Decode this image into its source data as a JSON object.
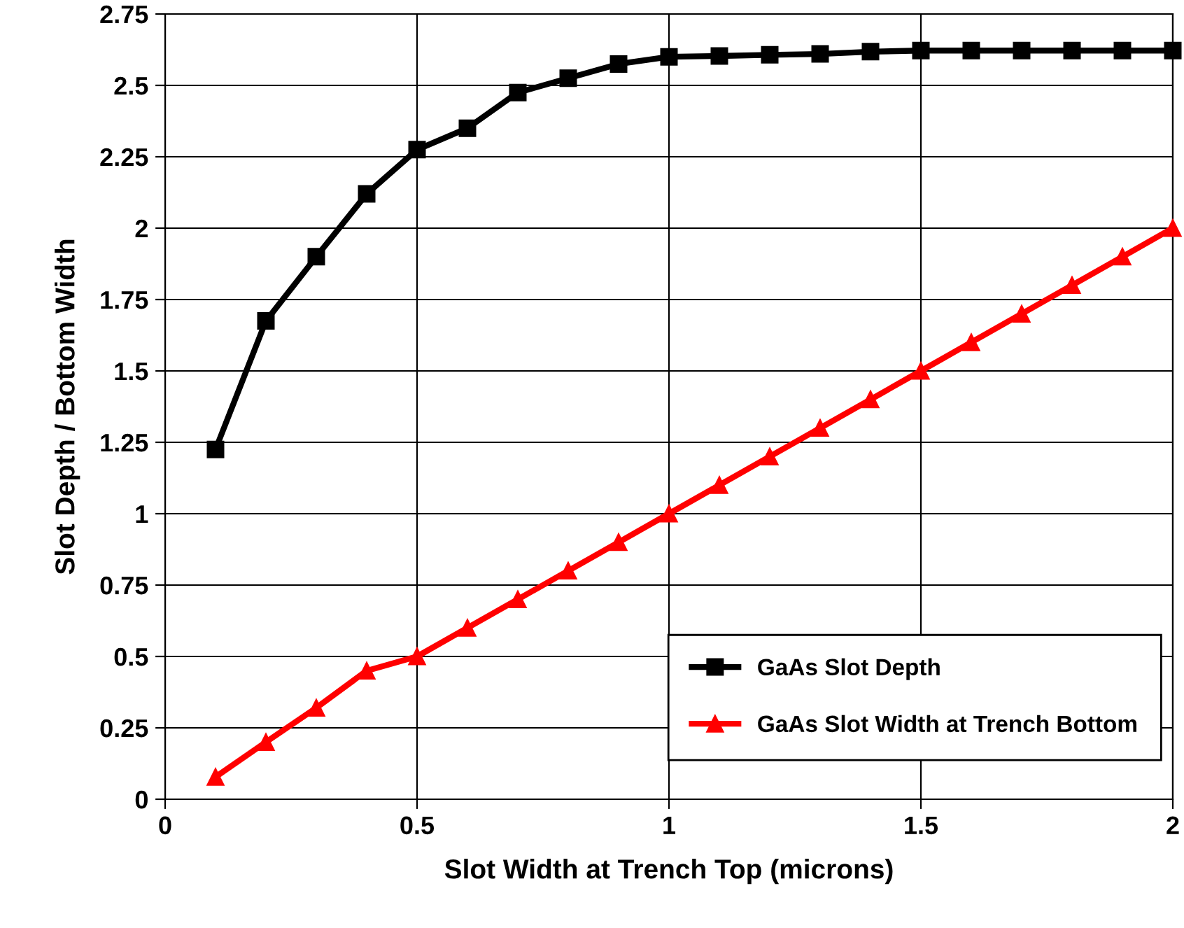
{
  "chart_data": {
    "type": "line",
    "xlabel": "Slot Width at Trench Top (microns)",
    "ylabel": "Slot Depth / Bottom Width",
    "x": [
      0.1,
      0.2,
      0.3,
      0.4,
      0.5,
      0.6,
      0.7,
      0.8,
      0.9,
      1.0,
      1.1,
      1.2,
      1.3,
      1.4,
      1.5,
      1.6,
      1.7,
      1.8,
      1.9,
      2.0
    ],
    "series": [
      {
        "name": "GaAs Slot Depth",
        "color": "#000000",
        "marker": "square",
        "values": [
          1.225,
          1.675,
          1.9,
          2.12,
          2.275,
          2.35,
          2.475,
          2.525,
          2.575,
          2.6,
          2.603,
          2.607,
          2.61,
          2.618,
          2.622,
          2.622,
          2.622,
          2.622,
          2.622,
          2.622
        ]
      },
      {
        "name": "GaAs Slot Width at Trench Bottom",
        "color": "#ff0000",
        "marker": "triangle",
        "values": [
          0.078,
          0.2,
          0.32,
          0.45,
          0.5,
          0.6,
          0.7,
          0.8,
          0.9,
          1.0,
          1.1,
          1.2,
          1.3,
          1.4,
          1.5,
          1.6,
          1.7,
          1.8,
          1.9,
          2.0
        ]
      }
    ],
    "xlim": [
      0,
      2
    ],
    "xticks": [
      0,
      0.5,
      1,
      1.5,
      2
    ],
    "ylim": [
      0,
      2.75
    ],
    "yticks": [
      0,
      0.25,
      0.5,
      0.75,
      1,
      1.25,
      1.5,
      1.75,
      2,
      2.25,
      2.5,
      2.75
    ],
    "grid": true,
    "legend": "bottom right",
    "line_style": "solid"
  }
}
